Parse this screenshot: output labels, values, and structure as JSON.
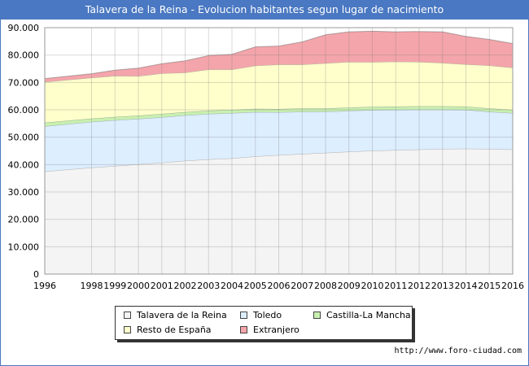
{
  "title": "Talavera de la Reina - Evolucion habitantes segun lugar de nacimiento",
  "footer": "http://www.foro-ciudad.com",
  "chart_data": {
    "type": "area",
    "stacked": true,
    "x": [
      1996,
      1998,
      1999,
      2000,
      2001,
      2002,
      2003,
      2004,
      2005,
      2006,
      2007,
      2008,
      2009,
      2010,
      2011,
      2012,
      2013,
      2014,
      2015,
      2016
    ],
    "xlim": [
      1996,
      2016
    ],
    "ylim": [
      0,
      90000
    ],
    "yticks": [
      0,
      10000,
      20000,
      30000,
      40000,
      50000,
      60000,
      70000,
      80000,
      90000
    ],
    "ytick_labels": [
      "0",
      "10.000",
      "20.000",
      "30.000",
      "40.000",
      "50.000",
      "60.000",
      "70.000",
      "80.000",
      "90.000"
    ],
    "grid": true,
    "legend_position": "bottom",
    "series": [
      {
        "name": "Talavera de la Reina",
        "color": "#f4f4f4",
        "values": [
          37500,
          38900,
          39500,
          40100,
          40700,
          41400,
          41900,
          42300,
          43000,
          43500,
          43900,
          44300,
          44700,
          45100,
          45300,
          45500,
          45700,
          45800,
          45700,
          45500
        ]
      },
      {
        "name": "Toledo",
        "color": "#ddeeff",
        "values": [
          16500,
          16700,
          16700,
          16600,
          16600,
          16600,
          16600,
          16500,
          16200,
          15600,
          15400,
          15000,
          14900,
          14800,
          14700,
          14600,
          14400,
          14200,
          13600,
          13300
        ]
      },
      {
        "name": "Castilla-La Mancha",
        "color": "#c8f0b0",
        "values": [
          1300,
          1200,
          1200,
          1200,
          1200,
          1200,
          1200,
          1200,
          1200,
          1200,
          1200,
          1200,
          1200,
          1200,
          1200,
          1200,
          1200,
          1200,
          1200,
          1200
        ]
      },
      {
        "name": "Resto de España",
        "color": "#ffffcc",
        "values": [
          14900,
          14900,
          15000,
          14400,
          14800,
          14400,
          15000,
          14700,
          15700,
          16200,
          16000,
          16500,
          16700,
          16300,
          16400,
          16200,
          15800,
          15400,
          15700,
          15400
        ]
      },
      {
        "name": "Extranjero",
        "color": "#f4a5ab",
        "values": [
          1200,
          1500,
          2100,
          2900,
          3500,
          4300,
          5100,
          5600,
          6900,
          6800,
          8300,
          10400,
          11000,
          11300,
          10900,
          11100,
          11400,
          10200,
          9500,
          8800
        ]
      }
    ]
  }
}
